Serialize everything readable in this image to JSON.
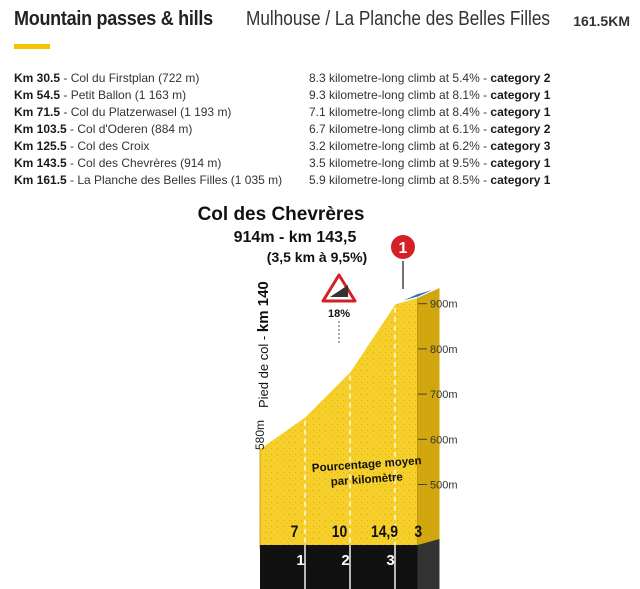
{
  "header": {
    "title": "Mountain passes & hills",
    "route": "Mulhouse / La Planche des Belles Filles",
    "distance": "161.5KM"
  },
  "climbs": [
    {
      "km": "Km 30.5",
      "name": " - Col du Firstplan (722 m)",
      "desc": "8.3 kilometre-long climb at 5.4% - ",
      "category": "category 2"
    },
    {
      "km": "Km 54.5",
      "name": " - Petit Ballon (1 163 m)",
      "desc": "9.3 kilometre-long climb at 8.1% - ",
      "category": "category 1"
    },
    {
      "km": "Km 71.5",
      "name": " - Col du Platzerwasel (1 193 m)",
      "desc": "7.1 kilometre-long climb at 8.4% - ",
      "category": "category 1"
    },
    {
      "km": "Km 103.5",
      "name": " - Col d'Oderen (884 m)",
      "desc": "6.7 kilometre-long climb at 6.1% - ",
      "category": "category 2"
    },
    {
      "km": "Km 125.5",
      "name": " - Col des Croix",
      "desc": "3.2 kilometre-long climb at 6.2% - ",
      "category": "category 3"
    },
    {
      "km": "Km 143.5",
      "name": " - Col des Chevrères (914 m)",
      "desc": "3.5 kilometre-long climb at 9.5% - ",
      "category": "category 1"
    },
    {
      "km": "Km 161.5",
      "name": " - La Planche des Belles Filles (1 035 m)",
      "desc": "5.9 kilometre-long climb at 8.5% - ",
      "category": "category 1"
    }
  ],
  "chart_data": {
    "type": "area",
    "title": "Col des Chevrères",
    "subtitle": "914m - km 143,5",
    "subtitle2": "(3,5 km à 9,5%)",
    "start_label": "580m",
    "base_label": "Pied de col - ",
    "base_km": "km 140",
    "category_marker": "1",
    "max_gradient": "18%",
    "legend": [
      "Pourcentage moyen",
      "par kilomètre"
    ],
    "x": [
      0,
      1,
      2,
      3,
      3.5
    ],
    "elevation": [
      580,
      650,
      750,
      900,
      914
    ],
    "kilometres": [
      "1",
      "2",
      "3"
    ],
    "gradients": [
      "7",
      "10",
      "14,9",
      "3"
    ],
    "segment_colors": [
      "#2e6fba",
      "#d42027",
      "#111111",
      "#2e6fba"
    ],
    "ylim": [
      480,
      935
    ],
    "yticks": [
      "500m",
      "600m",
      "700m",
      "800m",
      "900m"
    ],
    "colors": {
      "fill": "#f6cf2a",
      "shadow": "#d2a60e",
      "base": "#111111"
    }
  }
}
